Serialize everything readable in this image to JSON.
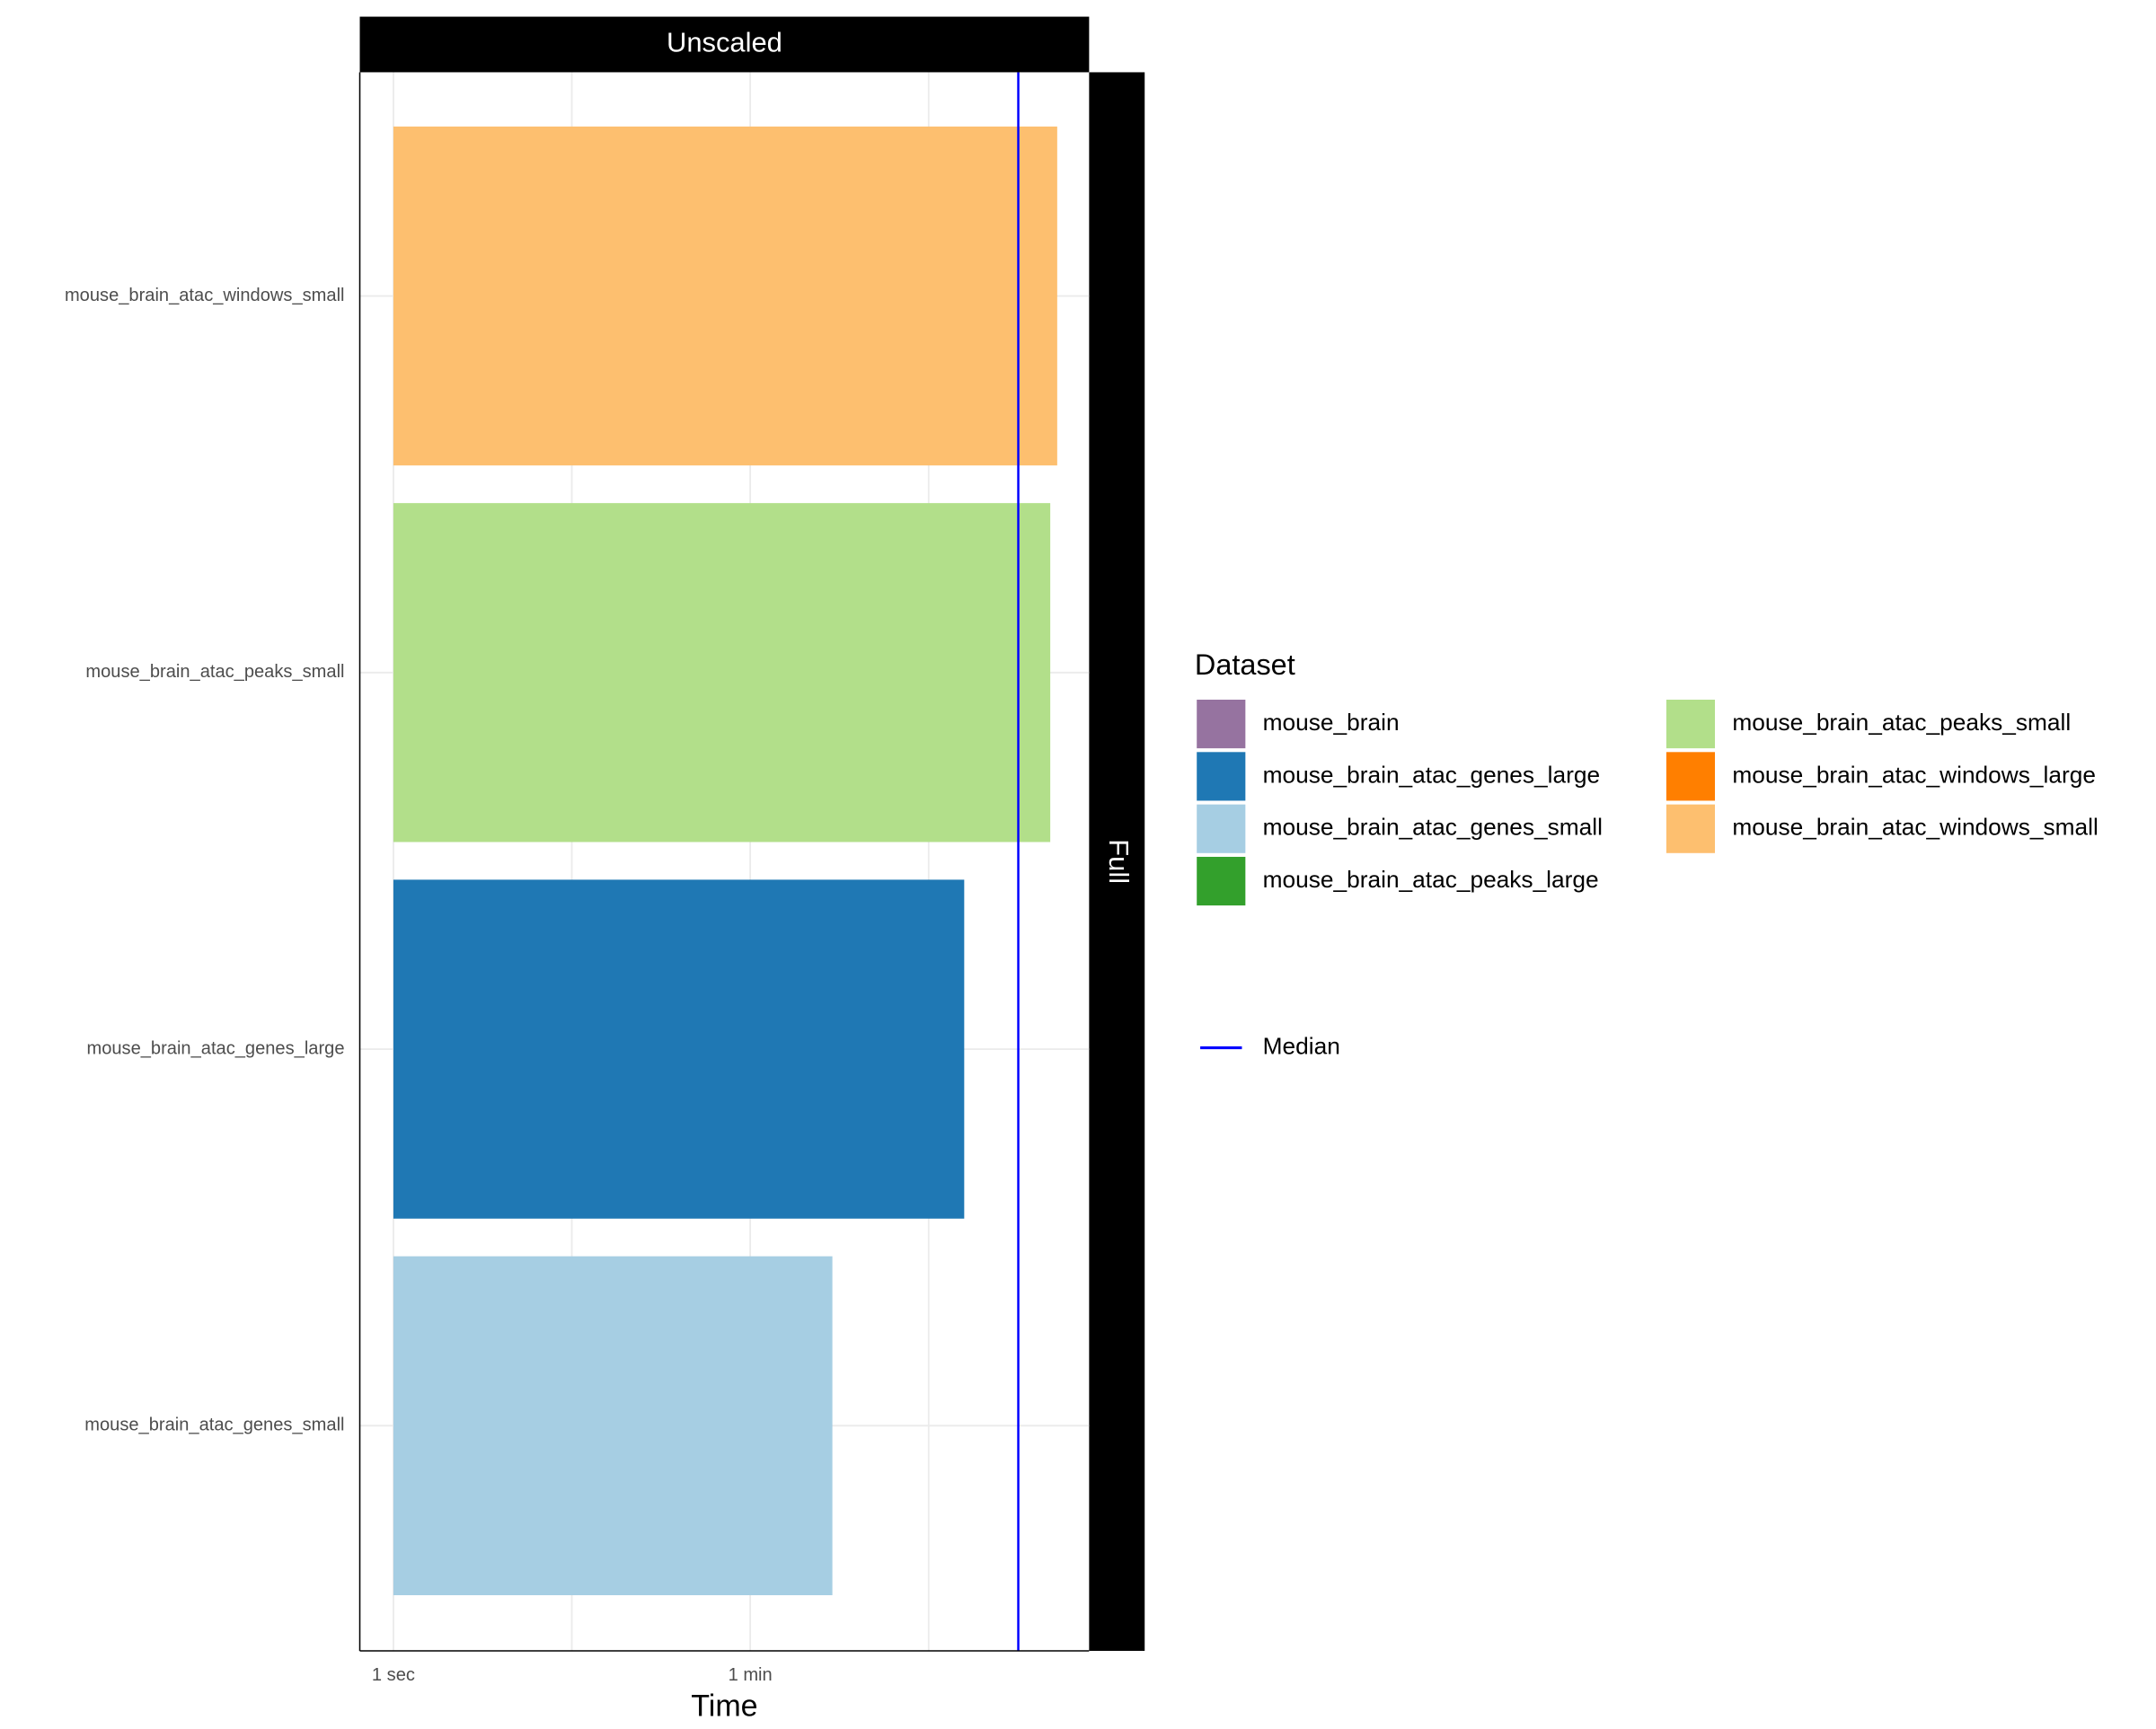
{
  "chart_data": {
    "type": "bar",
    "orientation": "horizontal",
    "facet_top": "Unscaled",
    "facet_right": "Full",
    "xlabel": "Time",
    "xscale": "log",
    "xlim": [
      0.68,
      2930
    ],
    "xticks": [
      {
        "value": 1,
        "label": "1 sec"
      },
      {
        "value": 60,
        "label": "1 min"
      }
    ],
    "grid": true,
    "categories": [
      "mouse_brain_atac_genes_small",
      "mouse_brain_atac_genes_large",
      "mouse_brain_atac_peaks_small",
      "mouse_brain_atac_windows_small"
    ],
    "values": [
      154,
      699,
      1876,
      2032
    ],
    "median": {
      "name": "Median",
      "value": 1300,
      "color": "#0000ff"
    },
    "legend": {
      "title": "Dataset",
      "position": "right",
      "items": [
        {
          "name": "mouse_brain",
          "color": "#9673a0"
        },
        {
          "name": "mouse_brain_atac_genes_large",
          "color": "#1f78b4"
        },
        {
          "name": "mouse_brain_atac_genes_small",
          "color": "#a6cee3"
        },
        {
          "name": "mouse_brain_atac_peaks_large",
          "color": "#33a02c"
        },
        {
          "name": "mouse_brain_atac_peaks_small",
          "color": "#b2df8a"
        },
        {
          "name": "mouse_brain_atac_windows_large",
          "color": "#ff7f00"
        },
        {
          "name": "mouse_brain_atac_windows_small",
          "color": "#fdbf6f"
        }
      ]
    }
  }
}
